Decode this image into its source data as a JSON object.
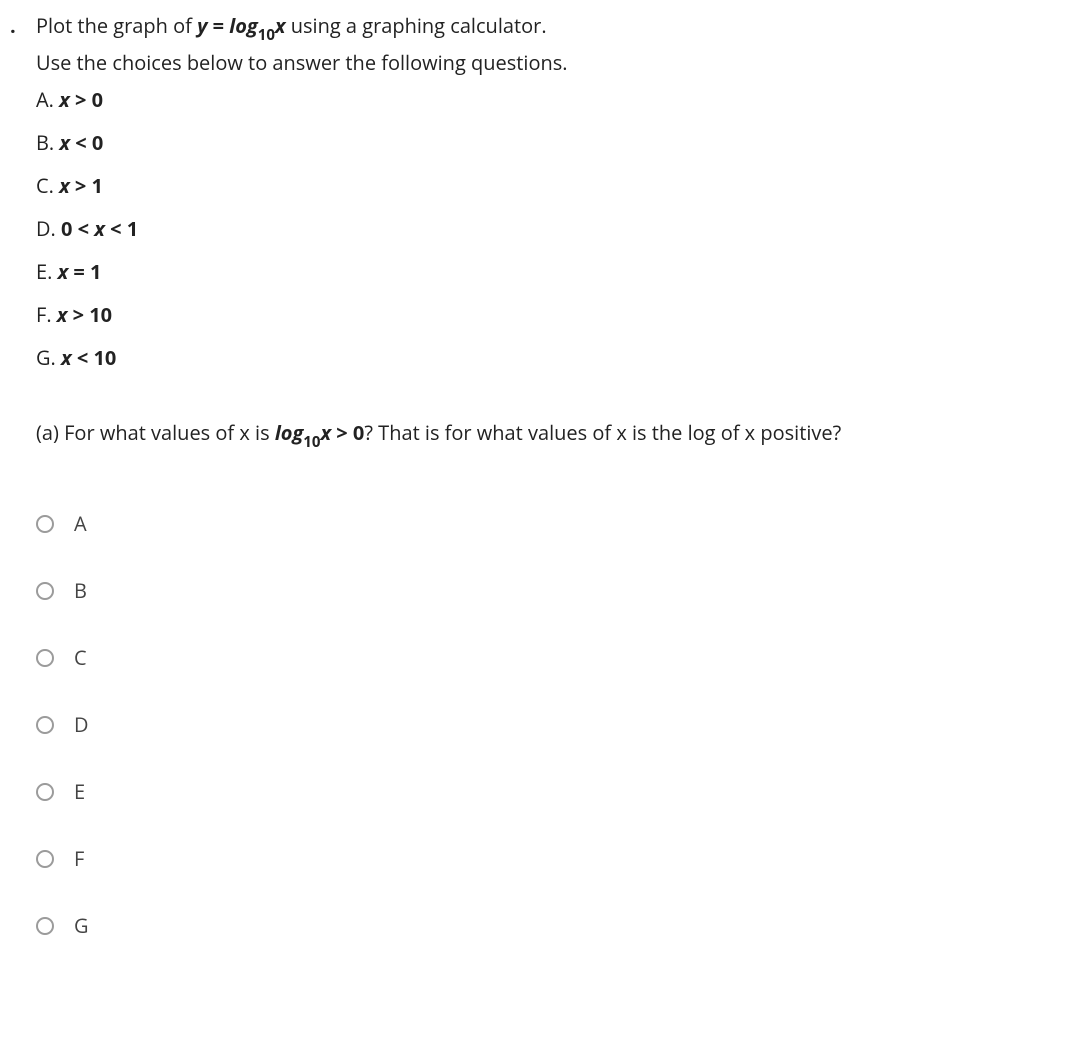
{
  "bullet": ".",
  "stem": {
    "line1": {
      "pre": "Plot the graph of ",
      "y": "y",
      "eq": "=",
      "log": "log",
      "sub": "10",
      "x": "x",
      "post": " using a graphing calculator."
    },
    "line2": "Use the choices below to answer the following questions."
  },
  "choices": [
    {
      "label": "A.",
      "var": "x",
      "rel": ">",
      "rhs": "0"
    },
    {
      "label": "B.",
      "var": "x",
      "rel": "<",
      "rhs": "0"
    },
    {
      "label": "C.",
      "var": "x",
      "rel": ">",
      "rhs": "1"
    },
    {
      "label": "D.",
      "lhs": "0",
      "rel1": "<",
      "var": "x",
      "rel2": "<",
      "rhs": "1"
    },
    {
      "label": "E.",
      "var": "x",
      "rel": "=",
      "rhs": "1"
    },
    {
      "label": "F.",
      "var": "x",
      "rel": ">",
      "rhs": "10"
    },
    {
      "label": "G.",
      "var": "x",
      "rel": "<",
      "rhs": "10"
    }
  ],
  "part_a": {
    "pre": "(a) For what values of x is ",
    "log": "log",
    "sub": "10",
    "x": "x",
    "rel": ">",
    "zero": "0",
    "post": "? That is for what values of x is the log of x positive?"
  },
  "options": [
    {
      "label": "A"
    },
    {
      "label": "B"
    },
    {
      "label": "C"
    },
    {
      "label": "D"
    },
    {
      "label": "E"
    },
    {
      "label": "F"
    },
    {
      "label": "G"
    }
  ]
}
